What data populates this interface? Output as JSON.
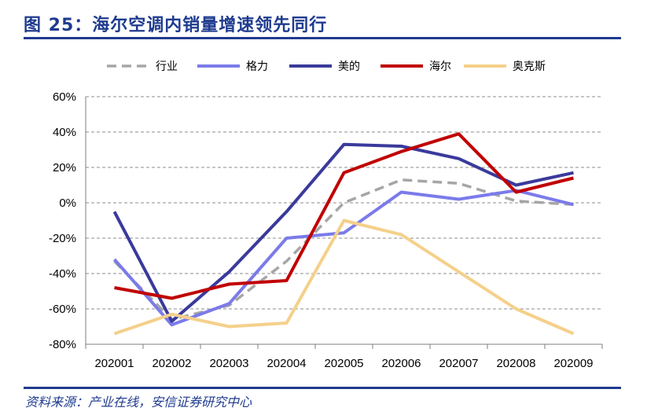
{
  "header": {
    "title": "图 25：海尔空调内销量增速领先同行"
  },
  "footer": {
    "source": "资料来源：产业在线，安信证券研究中心"
  },
  "chart_data": {
    "type": "line",
    "categories": [
      "202001",
      "202002",
      "202003",
      "202004",
      "202005",
      "202006",
      "202007",
      "202008",
      "202009"
    ],
    "y_ticks": [
      "60%",
      "40%",
      "20%",
      "0%",
      "-20%",
      "-40%",
      "-60%",
      "-80%"
    ],
    "ylim": [
      -80,
      60
    ],
    "grid": true,
    "legend_position": "top",
    "series": [
      {
        "name": "行业",
        "color": "#a6a6a6",
        "dashed": true,
        "values": [
          -33,
          -66,
          -58,
          -33,
          0,
          13,
          11,
          1,
          -1
        ]
      },
      {
        "name": "格力",
        "color": "#7b7bea",
        "dashed": false,
        "values": [
          -32,
          -69,
          -57,
          -20,
          -17,
          6,
          2,
          7,
          -1
        ]
      },
      {
        "name": "美的",
        "color": "#3a3a9c",
        "dashed": false,
        "values": [
          -5,
          -67,
          -39,
          -5,
          33,
          32,
          25,
          10,
          17
        ]
      },
      {
        "name": "海尔",
        "color": "#c00000",
        "dashed": false,
        "values": [
          -48,
          -54,
          -46,
          -44,
          17,
          29,
          39,
          6,
          14
        ]
      },
      {
        "name": "奥克斯",
        "color": "#f5d08a",
        "dashed": false,
        "values": [
          -74,
          -63,
          -70,
          -68,
          -10,
          -18,
          -39,
          -60,
          -74
        ]
      }
    ]
  }
}
